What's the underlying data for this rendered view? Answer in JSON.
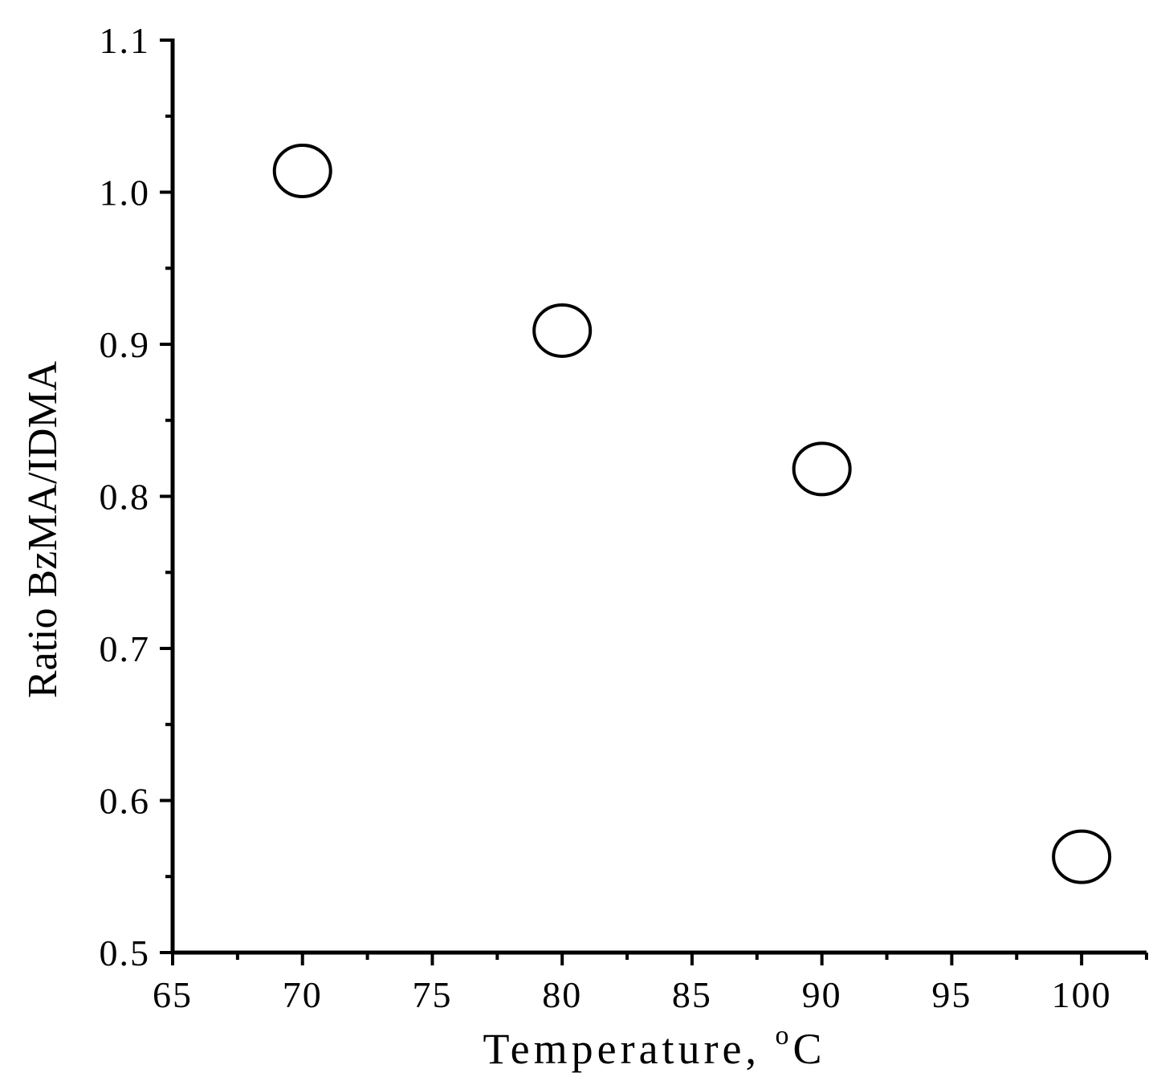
{
  "chart_data": {
    "type": "scatter",
    "xlabel": "Temperature, ",
    "xlabel_unit_sup": "o",
    "xlabel_unit": "C",
    "ylabel": "Ratio BzMA/IDMA",
    "xlim": [
      65,
      102.5
    ],
    "ylim": [
      0.5,
      1.1
    ],
    "x_ticks": [
      "65",
      "70",
      "75",
      "80",
      "85",
      "90",
      "95",
      "100"
    ],
    "y_ticks": [
      "0.5",
      "0.6",
      "0.7",
      "0.8",
      "0.9",
      "1.0",
      "1.1"
    ],
    "marker": "open-circle",
    "colors": {
      "axis": "#000000",
      "marker_stroke": "#000000",
      "marker_fill": "#ffffff"
    },
    "series": [
      {
        "x": [
          70,
          80,
          90,
          100
        ],
        "y": [
          1.014,
          0.909,
          0.818,
          0.563
        ]
      }
    ]
  }
}
